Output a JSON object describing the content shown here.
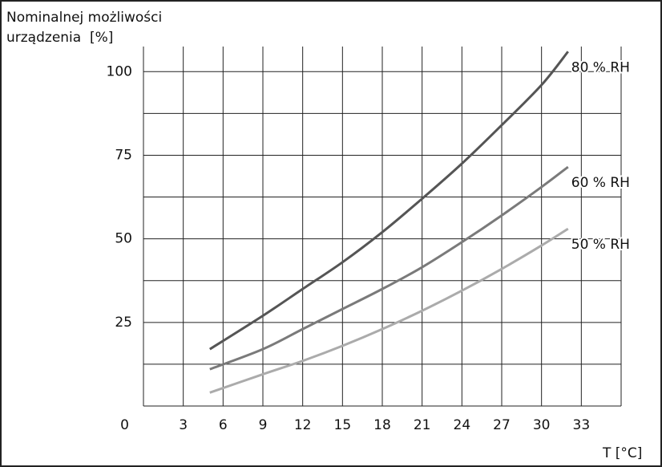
{
  "chart_data": {
    "type": "line",
    "y_label": [
      "Nominalnej możliwości",
      "urządzenia  [%]"
    ],
    "x_label": "T [°C]",
    "x": [
      5,
      9,
      12,
      15,
      18,
      21,
      24,
      27,
      30,
      32
    ],
    "series": [
      {
        "name": "80 % RH",
        "color": "#555555",
        "values": [
          17,
          27,
          35,
          43,
          52,
          62,
          72.5,
          84,
          96,
          106
        ]
      },
      {
        "name": "60 % RH",
        "color": "#7a7a7a",
        "values": [
          11,
          17,
          23,
          29,
          35,
          41.5,
          49,
          57,
          65.5,
          71.5
        ]
      },
      {
        "name": "50 % RH",
        "color": "#ababab",
        "values": [
          4,
          9.5,
          13.5,
          18,
          23,
          28.5,
          34.5,
          41,
          48,
          53
        ]
      }
    ],
    "xlim": [
      0,
      36
    ],
    "xticks": [
      3,
      6,
      9,
      12,
      15,
      18,
      21,
      24,
      27,
      30,
      33
    ],
    "ylim": [
      0,
      107.5
    ],
    "yticks": [
      0,
      25,
      50,
      75,
      100
    ],
    "ygrid": [
      12.5,
      37.5,
      62.5,
      87.5
    ],
    "grid": true
  }
}
